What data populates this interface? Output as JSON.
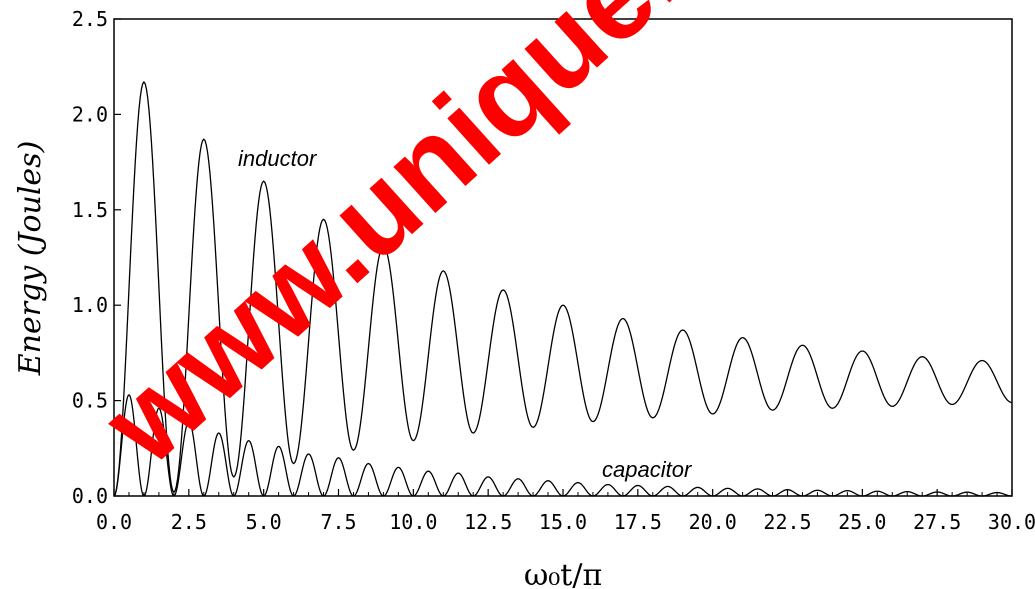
{
  "chart_data": {
    "type": "line",
    "title": "",
    "xlabel": "ω₀t/π",
    "ylabel": "Energy (Joules)",
    "xlim": [
      0,
      30
    ],
    "ylim": [
      0,
      2.5
    ],
    "xticks": [
      "0.0",
      "2.5",
      "5.0",
      "7.5",
      "10.0",
      "12.5",
      "15.0",
      "17.5",
      "20.0",
      "22.5",
      "25.0",
      "27.5",
      "30.0"
    ],
    "yticks": [
      "0.0",
      "0.5",
      "1.0",
      "1.5",
      "2.0",
      "2.5"
    ],
    "grid": false,
    "series": [
      {
        "name": "inductor",
        "peaks": [
          {
            "x": 1,
            "y": 2.17
          },
          {
            "x": 3,
            "y": 1.87
          },
          {
            "x": 5,
            "y": 1.65
          },
          {
            "x": 7,
            "y": 1.45
          },
          {
            "x": 9,
            "y": 1.31
          },
          {
            "x": 11,
            "y": 1.18
          },
          {
            "x": 13,
            "y": 1.08
          },
          {
            "x": 15,
            "y": 1.0
          },
          {
            "x": 17,
            "y": 0.93
          },
          {
            "x": 19,
            "y": 0.87
          },
          {
            "x": 21,
            "y": 0.83
          },
          {
            "x": 23,
            "y": 0.79
          },
          {
            "x": 25,
            "y": 0.76
          },
          {
            "x": 27,
            "y": 0.73
          },
          {
            "x": 29,
            "y": 0.71
          }
        ],
        "troughs": [
          {
            "x": 0,
            "y": 0.0
          },
          {
            "x": 2,
            "y": 0.02
          },
          {
            "x": 4,
            "y": 0.1
          },
          {
            "x": 6,
            "y": 0.17
          },
          {
            "x": 8,
            "y": 0.24
          },
          {
            "x": 10,
            "y": 0.29
          },
          {
            "x": 12,
            "y": 0.33
          },
          {
            "x": 14,
            "y": 0.36
          },
          {
            "x": 16,
            "y": 0.39
          },
          {
            "x": 18,
            "y": 0.41
          },
          {
            "x": 20,
            "y": 0.43
          },
          {
            "x": 22,
            "y": 0.45
          },
          {
            "x": 24,
            "y": 0.46
          },
          {
            "x": 26,
            "y": 0.47
          },
          {
            "x": 28,
            "y": 0.48
          },
          {
            "x": 30,
            "y": 0.49
          }
        ]
      },
      {
        "name": "capacitor",
        "peaks": [
          {
            "x": 0.5,
            "y": 0.53
          },
          {
            "x": 1.5,
            "y": 0.46
          },
          {
            "x": 2.5,
            "y": 0.39
          },
          {
            "x": 3.5,
            "y": 0.33
          },
          {
            "x": 4.5,
            "y": 0.29
          },
          {
            "x": 5.5,
            "y": 0.26
          },
          {
            "x": 6.5,
            "y": 0.22
          },
          {
            "x": 7.5,
            "y": 0.2
          },
          {
            "x": 8.5,
            "y": 0.17
          },
          {
            "x": 9.5,
            "y": 0.15
          },
          {
            "x": 10.5,
            "y": 0.13
          },
          {
            "x": 11.5,
            "y": 0.12
          },
          {
            "x": 12.5,
            "y": 0.1
          },
          {
            "x": 13.5,
            "y": 0.09
          },
          {
            "x": 14.5,
            "y": 0.08
          },
          {
            "x": 15.5,
            "y": 0.07
          },
          {
            "x": 16.5,
            "y": 0.06
          },
          {
            "x": 17.5,
            "y": 0.055
          },
          {
            "x": 18.5,
            "y": 0.05
          },
          {
            "x": 19.5,
            "y": 0.045
          },
          {
            "x": 20.5,
            "y": 0.04
          },
          {
            "x": 21.5,
            "y": 0.037
          },
          {
            "x": 22.5,
            "y": 0.033
          },
          {
            "x": 23.5,
            "y": 0.03
          },
          {
            "x": 24.5,
            "y": 0.028
          },
          {
            "x": 25.5,
            "y": 0.025
          },
          {
            "x": 26.5,
            "y": 0.023
          },
          {
            "x": 27.5,
            "y": 0.021
          },
          {
            "x": 28.5,
            "y": 0.02
          },
          {
            "x": 29.5,
            "y": 0.018
          }
        ],
        "trough": 0.0
      }
    ]
  },
  "watermark": {
    "text": "www.uniqueinfo",
    "color": "#ff0000"
  }
}
